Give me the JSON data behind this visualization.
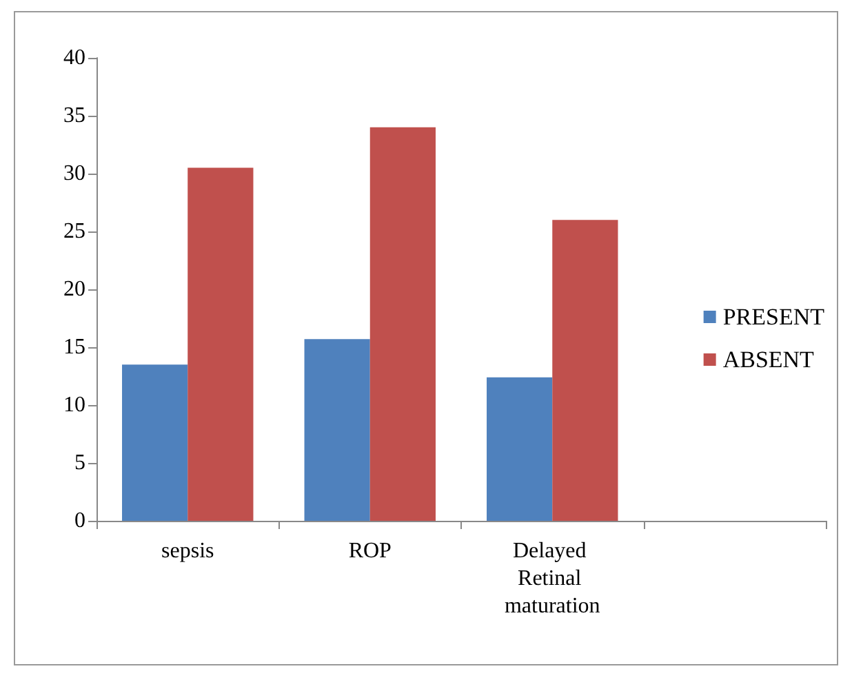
{
  "chart_data": {
    "type": "bar",
    "categories": [
      "sepsis",
      "ROP",
      "Delayed Retinal maturation",
      null
    ],
    "series": [
      {
        "name": "PRESENT",
        "color": "#4f81bd",
        "values": [
          13.5,
          15.7,
          12.4,
          null
        ]
      },
      {
        "name": "ABSENT",
        "color": "#c0504d",
        "values": [
          30.5,
          34,
          26,
          null
        ]
      }
    ],
    "ylim": [
      0,
      40
    ],
    "yticks": [
      0,
      5,
      10,
      15,
      20,
      25,
      30,
      35,
      40
    ],
    "grid": false,
    "legend": "right"
  }
}
